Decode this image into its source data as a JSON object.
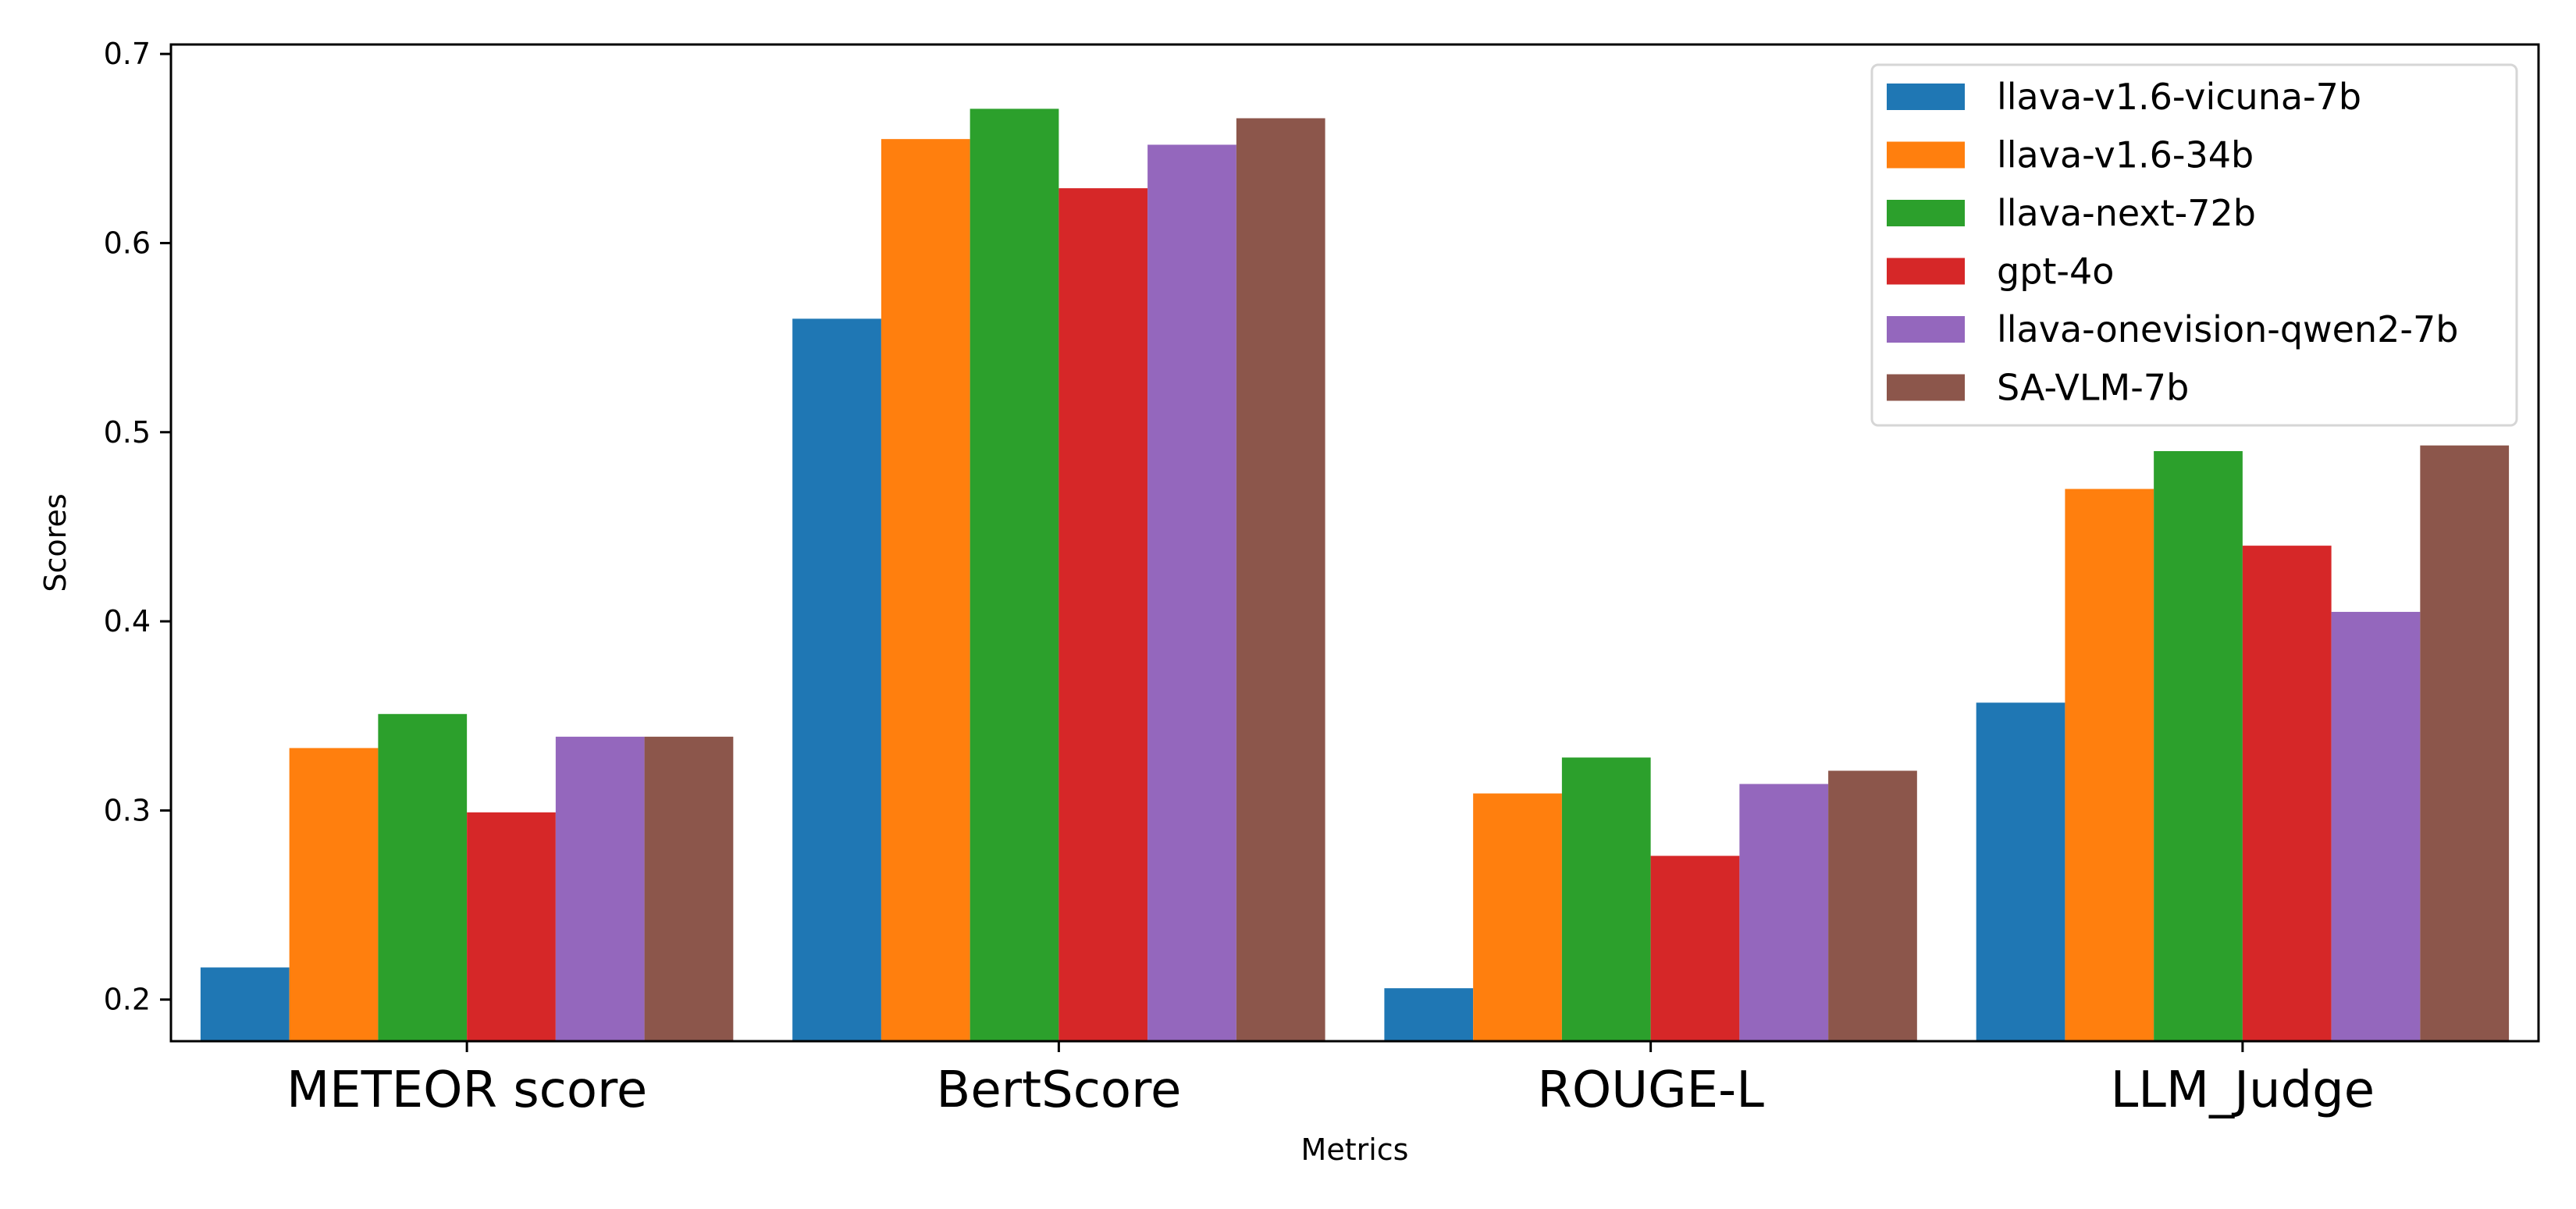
{
  "chart_data": {
    "type": "bar",
    "title": "",
    "xlabel": "Metrics",
    "ylabel": "Scores",
    "ylim": [
      0.178,
      0.705
    ],
    "yticks": [
      0.2,
      0.3,
      0.4,
      0.5,
      0.6,
      0.7
    ],
    "ytick_labels": [
      "0.2",
      "0.3",
      "0.4",
      "0.5",
      "0.6",
      "0.7"
    ],
    "grid": false,
    "legend_position": "top-right",
    "categories": [
      "METEOR score",
      "BertScore",
      "ROUGE-L",
      "LLM_Judge"
    ],
    "series": [
      {
        "name": "llava-v1.6-vicuna-7b",
        "color": "#1f77b4",
        "values": [
          0.217,
          0.56,
          0.206,
          0.357
        ]
      },
      {
        "name": "llava-v1.6-34b",
        "color": "#ff7f0e",
        "values": [
          0.333,
          0.655,
          0.309,
          0.47
        ]
      },
      {
        "name": "llava-next-72b",
        "color": "#2ca02c",
        "values": [
          0.351,
          0.671,
          0.328,
          0.49
        ]
      },
      {
        "name": "gpt-4o",
        "color": "#d62728",
        "values": [
          0.299,
          0.629,
          0.276,
          0.44
        ]
      },
      {
        "name": "llava-onevision-qwen2-7b",
        "color": "#9467bd",
        "values": [
          0.339,
          0.652,
          0.314,
          0.405
        ]
      },
      {
        "name": "SA-VLM-7b",
        "color": "#8c564b",
        "values": [
          0.339,
          0.666,
          0.321,
          0.493
        ]
      }
    ]
  }
}
